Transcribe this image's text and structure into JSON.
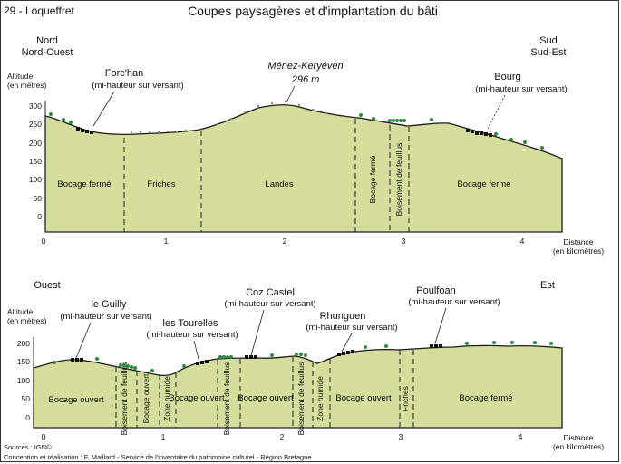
{
  "header": {
    "region": "29 - Loqueffret",
    "title": "Coupes paysagères et d'implantation du bâti"
  },
  "sections": [
    {
      "id": "top",
      "left_dir": [
        "Nord",
        "Nord-Ouest"
      ],
      "right_dir": [
        "Sud",
        "Sud-Est"
      ],
      "y_title": [
        "Altitude",
        "(en mètres)"
      ],
      "x_title": [
        "Distance",
        "(en kilomètres)"
      ],
      "y_ticks": [
        "300",
        "250",
        "200",
        "150",
        "100",
        "50",
        "0"
      ],
      "x_ticks": [
        "0",
        "1",
        "2",
        "3",
        "4"
      ],
      "places": [
        {
          "name": "Forc'han",
          "note": "(mi-hauteur sur versant)"
        },
        {
          "name": "Ménez-Keryéven",
          "note": "296 m"
        },
        {
          "name": "Bourg",
          "note": "(mi-hauteur sur versant)"
        }
      ],
      "zones": [
        "Bocage fermé",
        "Friches",
        "Landes",
        "Bocage fermé",
        "Boisement de feuillus",
        "Bocage fermé"
      ]
    },
    {
      "id": "bottom",
      "left_dir": [
        "Ouest"
      ],
      "right_dir": [
        "Est"
      ],
      "y_title": [
        "Altitude",
        "(en mètres)"
      ],
      "x_title": [
        "Distance",
        "(en kilomètres)"
      ],
      "y_ticks": [
        "200",
        "150",
        "100",
        "50",
        "0"
      ],
      "x_ticks": [
        "0",
        "1",
        "2",
        "3",
        "4"
      ],
      "places": [
        {
          "name": "le Guilly",
          "note": "(mi-hauteur sur versant)"
        },
        {
          "name": "les Tourelles",
          "note": "(mi-hauteur sur versant)"
        },
        {
          "name": "Coz Castel",
          "note": "(mi-hauteur sur versant)"
        },
        {
          "name": "Rhunguen",
          "note": "(mi-hauteur sur versant)"
        },
        {
          "name": "Poulfoan",
          "note": "(mi-hauteur sur versant)"
        }
      ],
      "zones": [
        "Bocage ouvert",
        "Boisement de feuillus",
        "Bocage ouvert",
        "Zone humide",
        "Bocage ouvert",
        "Boisement de feuillus",
        "Bocage ouvert",
        "Boisement de feuillus",
        "Zone humide",
        "Bocage ouvert",
        "Friches",
        "Bocage fermé"
      ]
    }
  ],
  "footer": {
    "sources": "Sources : IGN©",
    "credits": "Conception et réalisation : F. Maillard - Service de l'inventaire du patrimoine culturel - Région Bretagne"
  },
  "colors": {
    "terrain": "#d6dc9c",
    "outline": "#1a1a1a",
    "tree": "#2f8a3a",
    "house": "#111111"
  }
}
